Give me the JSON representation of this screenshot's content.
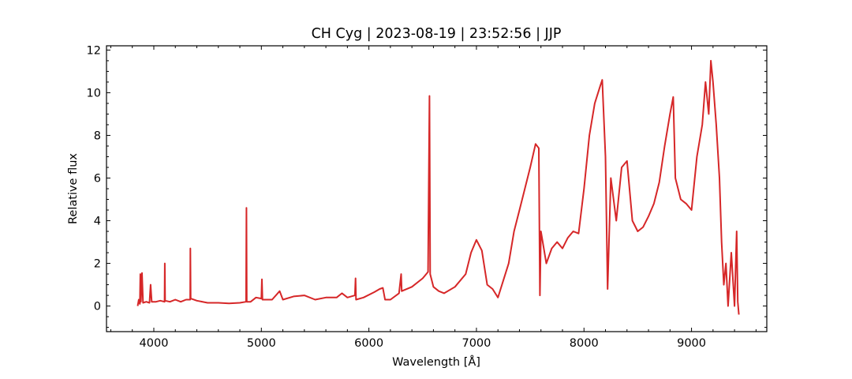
{
  "chart_data": {
    "type": "line",
    "title": "CH Cyg | 2023-08-19 | 23:52:56 | JJP",
    "xlabel": "Wavelength [Å]",
    "ylabel": "Relative flux",
    "xlim": [
      3560,
      9700
    ],
    "ylim": [
      -1.2,
      12.2
    ],
    "xticks": [
      4000,
      5000,
      6000,
      7000,
      8000,
      9000
    ],
    "yticks": [
      0,
      2,
      4,
      6,
      8,
      10,
      12
    ],
    "grid": false,
    "line_color": "#d62728",
    "series": [
      {
        "name": "",
        "points": [
          [
            3850,
            0.0
          ],
          [
            3860,
            0.3
          ],
          [
            3870,
            0.1
          ],
          [
            3875,
            1.5
          ],
          [
            3880,
            0.2
          ],
          [
            3890,
            1.55
          ],
          [
            3900,
            0.15
          ],
          [
            3930,
            0.2
          ],
          [
            3960,
            0.15
          ],
          [
            3970,
            1.0
          ],
          [
            3980,
            0.2
          ],
          [
            4020,
            0.2
          ],
          [
            4060,
            0.25
          ],
          [
            4100,
            0.2
          ],
          [
            4102,
            2.0
          ],
          [
            4105,
            0.25
          ],
          [
            4150,
            0.2
          ],
          [
            4200,
            0.3
          ],
          [
            4250,
            0.2
          ],
          [
            4300,
            0.3
          ],
          [
            4338,
            0.3
          ],
          [
            4340,
            2.7
          ],
          [
            4343,
            0.35
          ],
          [
            4400,
            0.25
          ],
          [
            4500,
            0.15
          ],
          [
            4600,
            0.15
          ],
          [
            4700,
            0.12
          ],
          [
            4800,
            0.15
          ],
          [
            4858,
            0.2
          ],
          [
            4861,
            4.6
          ],
          [
            4864,
            0.2
          ],
          [
            4900,
            0.2
          ],
          [
            4950,
            0.4
          ],
          [
            5000,
            0.35
          ],
          [
            5005,
            1.25
          ],
          [
            5010,
            0.3
          ],
          [
            5100,
            0.3
          ],
          [
            5170,
            0.7
          ],
          [
            5200,
            0.3
          ],
          [
            5300,
            0.45
          ],
          [
            5400,
            0.5
          ],
          [
            5500,
            0.3
          ],
          [
            5600,
            0.4
          ],
          [
            5700,
            0.4
          ],
          [
            5750,
            0.6
          ],
          [
            5800,
            0.4
          ],
          [
            5870,
            0.5
          ],
          [
            5876,
            1.3
          ],
          [
            5880,
            0.3
          ],
          [
            5950,
            0.4
          ],
          [
            6050,
            0.65
          ],
          [
            6100,
            0.8
          ],
          [
            6130,
            0.85
          ],
          [
            6150,
            0.3
          ],
          [
            6200,
            0.3
          ],
          [
            6280,
            0.6
          ],
          [
            6300,
            1.5
          ],
          [
            6305,
            0.7
          ],
          [
            6400,
            0.9
          ],
          [
            6500,
            1.3
          ],
          [
            6550,
            1.6
          ],
          [
            6563,
            9.85
          ],
          [
            6570,
            1.5
          ],
          [
            6600,
            0.9
          ],
          [
            6650,
            0.7
          ],
          [
            6700,
            0.6
          ],
          [
            6800,
            0.9
          ],
          [
            6900,
            1.5
          ],
          [
            6950,
            2.5
          ],
          [
            7000,
            3.1
          ],
          [
            7050,
            2.6
          ],
          [
            7100,
            1.0
          ],
          [
            7150,
            0.8
          ],
          [
            7200,
            0.4
          ],
          [
            7250,
            1.2
          ],
          [
            7300,
            2.0
          ],
          [
            7350,
            3.5
          ],
          [
            7400,
            4.5
          ],
          [
            7450,
            5.5
          ],
          [
            7500,
            6.5
          ],
          [
            7550,
            7.6
          ],
          [
            7580,
            7.4
          ],
          [
            7590,
            0.5
          ],
          [
            7600,
            3.5
          ],
          [
            7650,
            2.0
          ],
          [
            7700,
            2.7
          ],
          [
            7750,
            3.0
          ],
          [
            7800,
            2.7
          ],
          [
            7850,
            3.2
          ],
          [
            7900,
            3.5
          ],
          [
            7950,
            3.4
          ],
          [
            8000,
            5.5
          ],
          [
            8050,
            8.0
          ],
          [
            8100,
            9.5
          ],
          [
            8150,
            10.3
          ],
          [
            8170,
            10.6
          ],
          [
            8200,
            7.0
          ],
          [
            8220,
            0.8
          ],
          [
            8250,
            6.0
          ],
          [
            8300,
            4.0
          ],
          [
            8350,
            6.5
          ],
          [
            8400,
            6.8
          ],
          [
            8450,
            4.0
          ],
          [
            8500,
            3.5
          ],
          [
            8550,
            3.7
          ],
          [
            8600,
            4.2
          ],
          [
            8650,
            4.8
          ],
          [
            8700,
            5.8
          ],
          [
            8750,
            7.5
          ],
          [
            8800,
            9.0
          ],
          [
            8830,
            9.8
          ],
          [
            8850,
            6.0
          ],
          [
            8900,
            5.0
          ],
          [
            8950,
            4.8
          ],
          [
            9000,
            4.5
          ],
          [
            9050,
            7.0
          ],
          [
            9100,
            8.5
          ],
          [
            9130,
            10.5
          ],
          [
            9160,
            9.0
          ],
          [
            9180,
            11.5
          ],
          [
            9200,
            10.5
          ],
          [
            9230,
            8.5
          ],
          [
            9260,
            6.0
          ],
          [
            9280,
            3.0
          ],
          [
            9300,
            1.0
          ],
          [
            9320,
            2.0
          ],
          [
            9340,
            0.0
          ],
          [
            9370,
            2.5
          ],
          [
            9400,
            0.0
          ],
          [
            9420,
            3.5
          ],
          [
            9430,
            0.2
          ],
          [
            9440,
            -0.4
          ]
        ]
      }
    ]
  }
}
